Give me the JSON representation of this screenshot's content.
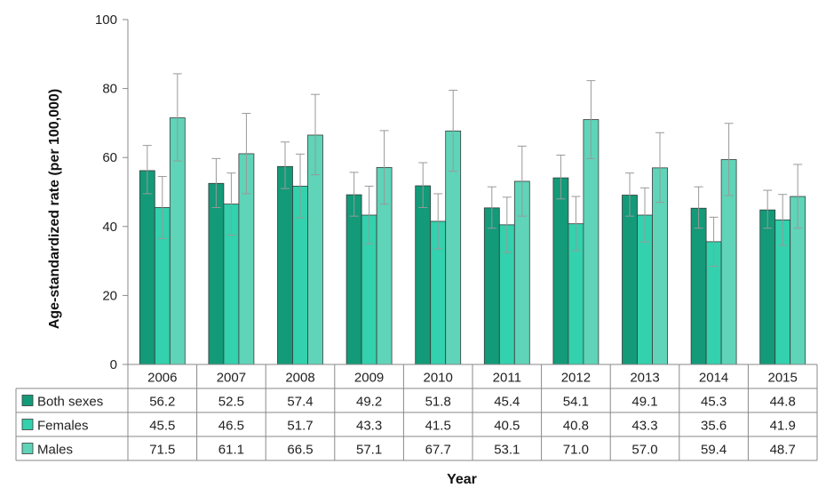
{
  "chart_data": {
    "type": "bar",
    "title": "",
    "xlabel": "Year",
    "ylabel": "Age-standardized rate (per 100,000)",
    "ylim": [
      0,
      100
    ],
    "yticks": [
      0,
      20,
      40,
      60,
      80,
      100
    ],
    "grid": false,
    "legend": "data-table-rows",
    "categories": [
      "2006",
      "2007",
      "2008",
      "2009",
      "2010",
      "2011",
      "2012",
      "2013",
      "2014",
      "2015"
    ],
    "series": [
      {
        "name": "Both sexes",
        "color": "#139a78",
        "values": [
          56.2,
          52.5,
          57.4,
          49.2,
          51.8,
          45.4,
          54.1,
          49.1,
          45.3,
          44.8
        ],
        "labels": [
          "56.2",
          "52.5",
          "57.4",
          "49.2",
          "51.8",
          "45.4",
          "54.1",
          "49.1",
          "45.3",
          "44.8"
        ],
        "error_low": [
          49.5,
          45.5,
          51.0,
          43.0,
          45.5,
          39.5,
          48.0,
          43.0,
          39.5,
          39.5
        ],
        "error_high": [
          63.5,
          59.7,
          64.5,
          55.7,
          58.5,
          51.5,
          60.7,
          55.5,
          51.5,
          50.5
        ]
      },
      {
        "name": "Females",
        "color": "#33d1ad",
        "values": [
          45.5,
          46.5,
          51.7,
          43.3,
          41.5,
          40.5,
          40.8,
          43.3,
          35.6,
          41.9
        ],
        "labels": [
          "45.5",
          "46.5",
          "51.7",
          "43.3",
          "41.5",
          "40.5",
          "40.8",
          "43.3",
          "35.6",
          "41.9"
        ],
        "error_low": [
          36.5,
          37.5,
          42.5,
          35.0,
          33.5,
          32.5,
          33.0,
          35.5,
          28.5,
          34.5
        ],
        "error_high": [
          54.5,
          55.5,
          61.0,
          51.7,
          49.5,
          48.5,
          48.7,
          51.2,
          42.7,
          49.3
        ]
      },
      {
        "name": "Males",
        "color": "#5fd4b8",
        "values": [
          71.5,
          61.1,
          66.5,
          57.1,
          67.7,
          53.1,
          71.0,
          57.0,
          59.4,
          48.7
        ],
        "labels": [
          "71.5",
          "61.1",
          "66.5",
          "57.1",
          "67.7",
          "53.1",
          "71.0",
          "57.0",
          "59.4",
          "48.7"
        ],
        "error_low": [
          59.0,
          49.5,
          55.0,
          46.5,
          56.0,
          43.0,
          59.7,
          47.0,
          49.0,
          39.5
        ],
        "error_high": [
          84.3,
          72.8,
          78.3,
          67.8,
          79.5,
          63.3,
          82.3,
          67.2,
          69.9,
          58.0
        ]
      }
    ]
  }
}
